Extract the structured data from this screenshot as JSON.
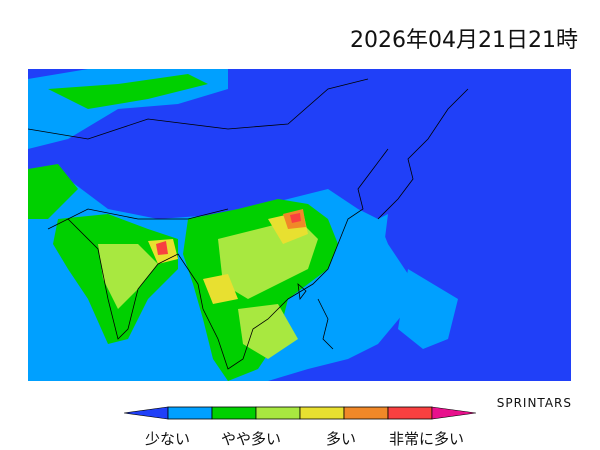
{
  "header": {
    "title": "2026年04月21日21時"
  },
  "credit": "SPRINTARS",
  "legend": {
    "colors": [
      "#2040f8",
      "#00a0ff",
      "#00d000",
      "#a8e840",
      "#e8e030",
      "#f08828",
      "#f84040",
      "#e8108c"
    ],
    "labels": [
      "少ない",
      "やや多い",
      "多い",
      "非常に多い"
    ]
  }
}
